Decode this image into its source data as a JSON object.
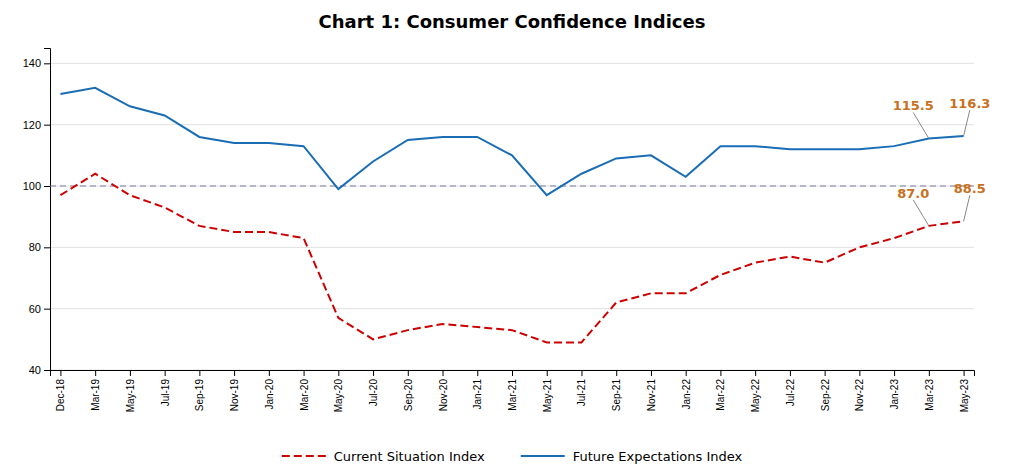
{
  "chart_data": {
    "type": "line",
    "title": "Chart 1: Consumer Confidence Indices",
    "categories": [
      "Dec-18",
      "Mar-19",
      "May-19",
      "Jul-19",
      "Sep-19",
      "Nov-19",
      "Jan-20",
      "Mar-20",
      "May-20",
      "Jul-20",
      "Sep-20",
      "Nov-20",
      "Jan-21",
      "Mar-21",
      "May-21",
      "Jul-21",
      "Sep-21",
      "Nov-21",
      "Jan-22",
      "Mar-22",
      "May-22",
      "Jul-22",
      "Sep-22",
      "Nov-22",
      "Jan-23",
      "Mar-23",
      "May-23"
    ],
    "series": [
      {
        "name": "Current Situation Index",
        "color": "#cc0000",
        "line_style": "dashed",
        "values": [
          97,
          104,
          97,
          93,
          87,
          85,
          85,
          83,
          57,
          50,
          53,
          55,
          54,
          53,
          49,
          49,
          62,
          65,
          65,
          71,
          75,
          77,
          75,
          80,
          83,
          87,
          88.5
        ]
      },
      {
        "name": "Future Expectations Index",
        "color": "#1a6db5",
        "line_style": "solid",
        "values": [
          130,
          132,
          126,
          123,
          116,
          114,
          114,
          113,
          99,
          108,
          115,
          116,
          116,
          110,
          97,
          104,
          109,
          110,
          103,
          113,
          113,
          112,
          112,
          112,
          113,
          115.5,
          116.3
        ]
      }
    ],
    "reference_line": {
      "value": 100,
      "color": "#6b6b9a",
      "line_style": "dashed"
    },
    "annotations": [
      {
        "text": "115.5",
        "x": "Mar-23",
        "y": 115.5,
        "color": "#c87020"
      },
      {
        "text": "116.3",
        "x": "May-23",
        "y": 116.3,
        "color": "#c87020"
      },
      {
        "text": "87.0",
        "x": "Mar-23",
        "y": 87,
        "color": "#c87020"
      },
      {
        "text": "88.5",
        "x": "May-23",
        "y": 88.5,
        "color": "#c87020"
      }
    ],
    "ylim": [
      40,
      145
    ],
    "yticks": [
      40,
      60,
      80,
      100,
      120,
      140
    ],
    "grid": true,
    "legend": "bottom"
  }
}
